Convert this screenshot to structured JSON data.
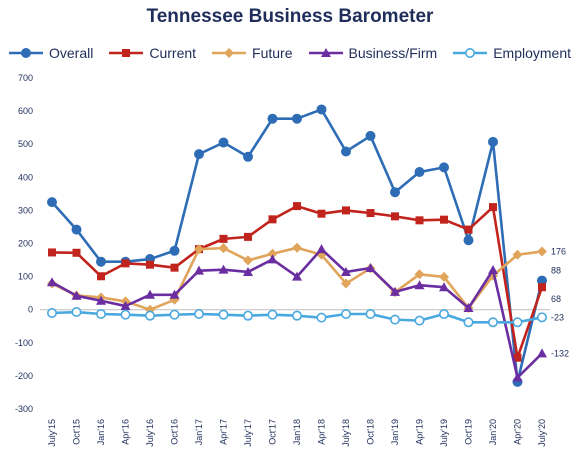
{
  "chart_data": {
    "type": "line",
    "title": "Tennessee Business Barometer",
    "xlabel": "",
    "ylabel": "",
    "ylim": [
      -300,
      700
    ],
    "yticks": [
      -300,
      -200,
      -100,
      0,
      100,
      200,
      300,
      400,
      500,
      600,
      700
    ],
    "grid": false,
    "legend_position": "top",
    "categories": [
      "July'15",
      "Oct'15",
      "Jan'16",
      "Apr'16",
      "July'16",
      "Oct'16",
      "Jan'17",
      "Apr'17",
      "July'17",
      "Oct'17",
      "Jan'18",
      "Apr'18",
      "July'18",
      "Oct'18",
      "Jan'19",
      "Apr'19",
      "July'19",
      "Oct'19",
      "Jan'20",
      "Apr'20",
      "July'20"
    ],
    "series": [
      {
        "name": "Overall",
        "color": "#2e6db5",
        "marker": "circle-filled",
        "values": [
          325,
          242,
          145,
          145,
          153,
          178,
          470,
          505,
          462,
          577,
          577,
          605,
          478,
          525,
          355,
          416,
          430,
          210,
          507,
          -218,
          88
        ]
      },
      {
        "name": "Current",
        "color": "#c0241c",
        "marker": "square",
        "values": [
          173,
          172,
          101,
          140,
          136,
          127,
          183,
          214,
          220,
          273,
          313,
          290,
          300,
          292,
          282,
          270,
          272,
          242,
          310,
          -145,
          68
        ]
      },
      {
        "name": "Future",
        "color": "#e0a45a",
        "marker": "diamond",
        "values": [
          79,
          43,
          37,
          25,
          0,
          30,
          183,
          186,
          149,
          169,
          187,
          166,
          79,
          125,
          53,
          107,
          99,
          5,
          103,
          166,
          176
        ]
      },
      {
        "name": "Business/Firm",
        "color": "#6a2ea1",
        "marker": "triangle",
        "values": [
          83,
          42,
          27,
          11,
          45,
          45,
          118,
          121,
          114,
          152,
          100,
          183,
          114,
          126,
          54,
          74,
          68,
          5,
          120,
          -205,
          -132
        ]
      },
      {
        "name": "Employment",
        "color": "#4aa8e0",
        "marker": "circle-open",
        "values": [
          -10,
          -7,
          -13,
          -15,
          -18,
          -15,
          -13,
          -15,
          -18,
          -15,
          -18,
          -24,
          -13,
          -13,
          -30,
          -33,
          -13,
          -38,
          -38,
          -38,
          -23
        ]
      }
    ],
    "end_labels": [
      {
        "text": "176",
        "series": "Future"
      },
      {
        "text": "88",
        "series": "Overall"
      },
      {
        "text": "68",
        "series": "Current"
      },
      {
        "text": "-23",
        "series": "Employment"
      },
      {
        "text": "-132",
        "series": "Business/Firm"
      }
    ]
  }
}
